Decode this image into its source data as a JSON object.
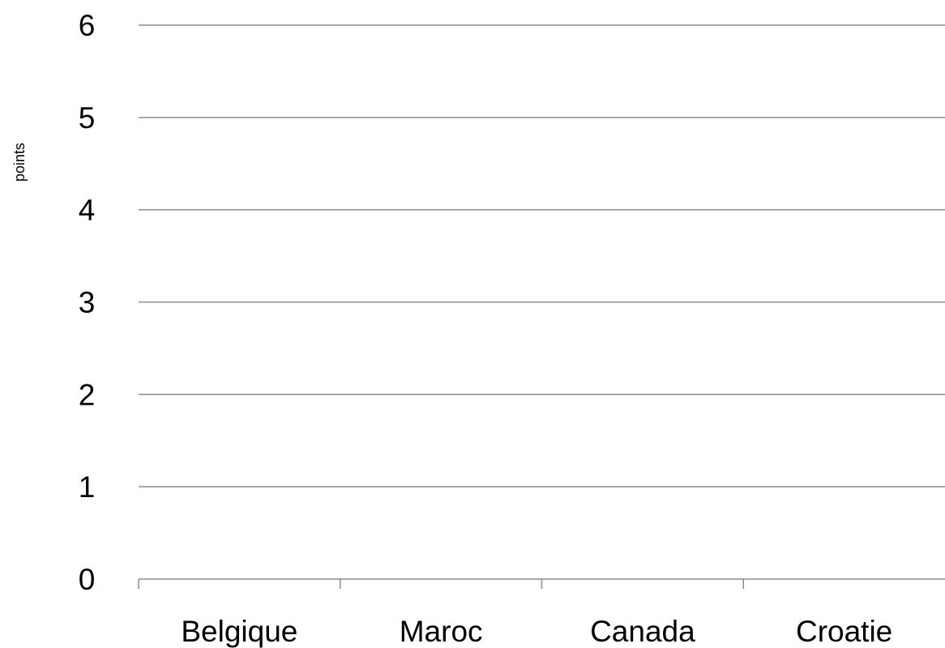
{
  "chart_data": {
    "type": "bar",
    "title": "",
    "xlabel": "",
    "ylabel": "points",
    "categories": [
      "Belgique",
      "Maroc",
      "Canada",
      "Croatie"
    ],
    "series": [
      {
        "values": [
          0,
          0,
          0,
          0
        ]
      }
    ],
    "ylim": [
      0,
      6
    ],
    "y_ticks": [
      0,
      1,
      2,
      3,
      4,
      5,
      6
    ],
    "grid": true,
    "legend": "none",
    "colors": {
      "gridline": "#8c8c8c",
      "text": "#000000"
    }
  }
}
